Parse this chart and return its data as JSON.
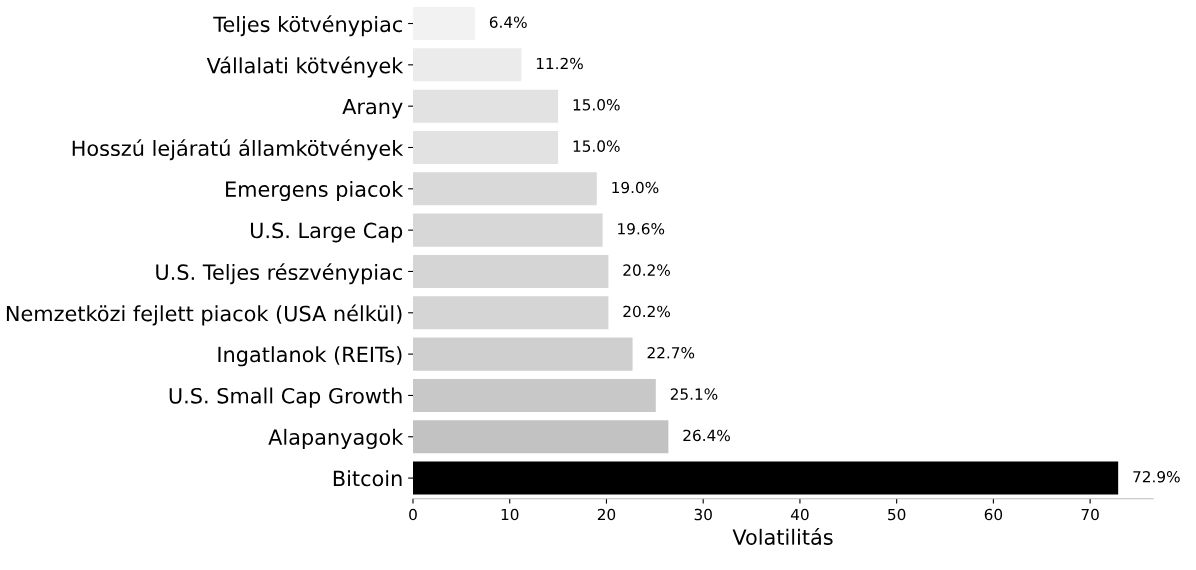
{
  "chart_data": {
    "type": "bar",
    "orientation": "horizontal",
    "xlabel": "Volatilitás",
    "categories": [
      "Teljes kötvénypiac",
      "Vállalati kötvények",
      "Arany",
      "Hosszú lejáratú államkötvények",
      "Emergens piacok",
      "U.S. Large Cap",
      "U.S. Teljes részvénypiac",
      "Nemzetközi fejlett piacok (USA nélkül)",
      "Ingatlanok (REITs)",
      "U.S. Small Cap Growth",
      "Alapanyagok",
      "Bitcoin"
    ],
    "values": [
      6.4,
      11.2,
      15.0,
      15.0,
      19.0,
      19.6,
      20.2,
      20.2,
      22.7,
      25.1,
      26.4,
      72.9
    ],
    "colors": [
      "#f2f2f2",
      "#ebebeb",
      "#e2e2e2",
      "#e2e2e2",
      "#d9d9d9",
      "#d7d7d7",
      "#d5d5d5",
      "#d5d5d5",
      "#cfcfcf",
      "#c8c8c8",
      "#c2c2c2",
      "#000000"
    ],
    "value_labels": [
      "6.4%",
      "11.2%",
      "15.0%",
      "15.0%",
      "19.0%",
      "19.6%",
      "20.2%",
      "20.2%",
      "22.7%",
      "25.1%",
      "26.4%",
      "72.9%"
    ],
    "xlim": [
      0,
      76.5
    ],
    "xticks": [
      0,
      10,
      20,
      30,
      40,
      50,
      60,
      70
    ],
    "grid": false,
    "legend": false
  }
}
